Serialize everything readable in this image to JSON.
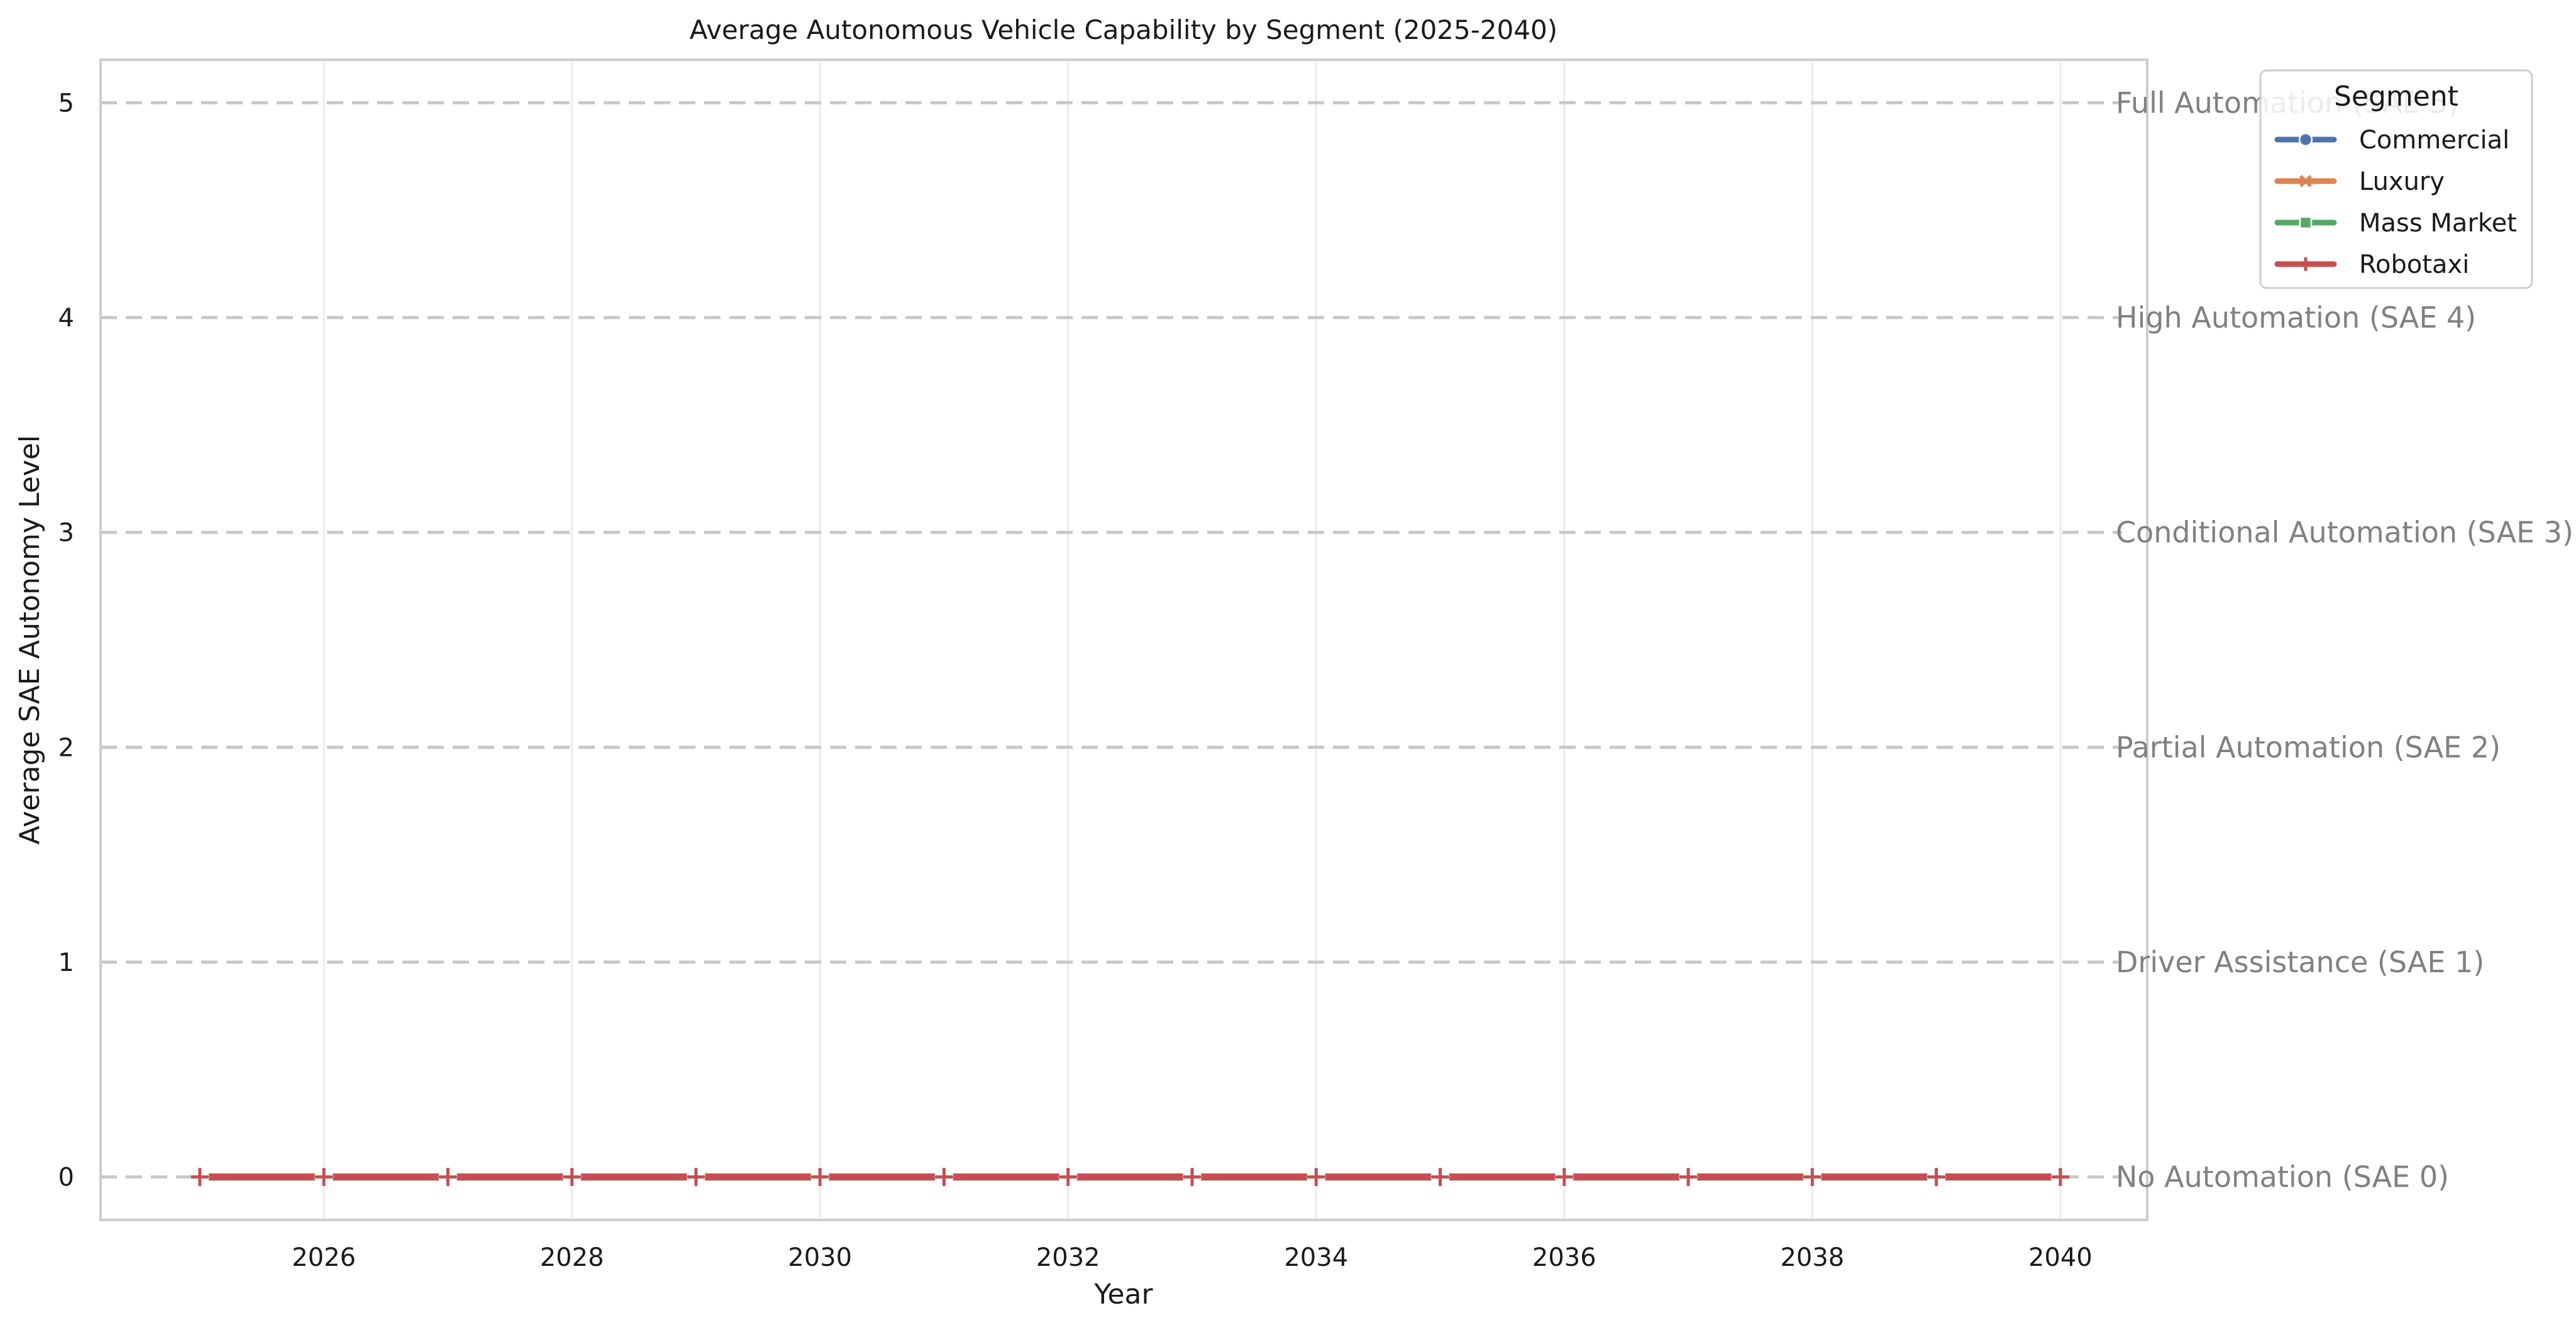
{
  "chart_data": {
    "type": "line",
    "title": "Average Autonomous Vehicle Capability by Segment (2025-2040)",
    "xlabel": "Year",
    "ylabel": "Average SAE Autonomy Level",
    "xlim": [
      2024.2,
      2040.7
    ],
    "ylim": [
      -0.2,
      5.2
    ],
    "x_ticks": [
      2026,
      2028,
      2030,
      2032,
      2034,
      2036,
      2038,
      2040
    ],
    "y_ticks": [
      0,
      1,
      2,
      3,
      4,
      5
    ],
    "x": [
      2025,
      2026,
      2027,
      2028,
      2029,
      2030,
      2031,
      2032,
      2033,
      2034,
      2035,
      2036,
      2037,
      2038,
      2039,
      2040
    ],
    "grid": true,
    "legend": {
      "title": "Segment",
      "placement": "top-right"
    },
    "reference_lines": [
      {
        "y": 0,
        "label": "No Automation (SAE 0)"
      },
      {
        "y": 1,
        "label": "Driver Assistance (SAE 1)"
      },
      {
        "y": 2,
        "label": "Partial Automation (SAE 2)"
      },
      {
        "y": 3,
        "label": "Conditional Automation (SAE 3)"
      },
      {
        "y": 4,
        "label": "High Automation (SAE 4)"
      },
      {
        "y": 5,
        "label": "Full Automation (SAE 5)"
      }
    ],
    "series": [
      {
        "name": "Commercial",
        "color": "#4c72b0",
        "marker": "circle",
        "values": [
          0,
          0,
          0,
          0,
          0,
          0,
          0,
          0,
          0,
          0,
          0,
          0,
          0,
          0,
          0,
          0
        ]
      },
      {
        "name": "Luxury",
        "color": "#dd8452",
        "marker": "x",
        "values": [
          0,
          0,
          0,
          0,
          0,
          0,
          0,
          0,
          0,
          0,
          0,
          0,
          0,
          0,
          0,
          0
        ]
      },
      {
        "name": "Mass Market",
        "color": "#55a868",
        "marker": "square",
        "values": [
          0,
          0,
          0,
          0,
          0,
          0,
          0,
          0,
          0,
          0,
          0,
          0,
          0,
          0,
          0,
          0
        ]
      },
      {
        "name": "Robotaxi",
        "color": "#c44e52",
        "marker": "plus",
        "values": [
          0,
          0,
          0,
          0,
          0,
          0,
          0,
          0,
          0,
          0,
          0,
          0,
          0,
          0,
          0,
          0
        ]
      }
    ]
  }
}
